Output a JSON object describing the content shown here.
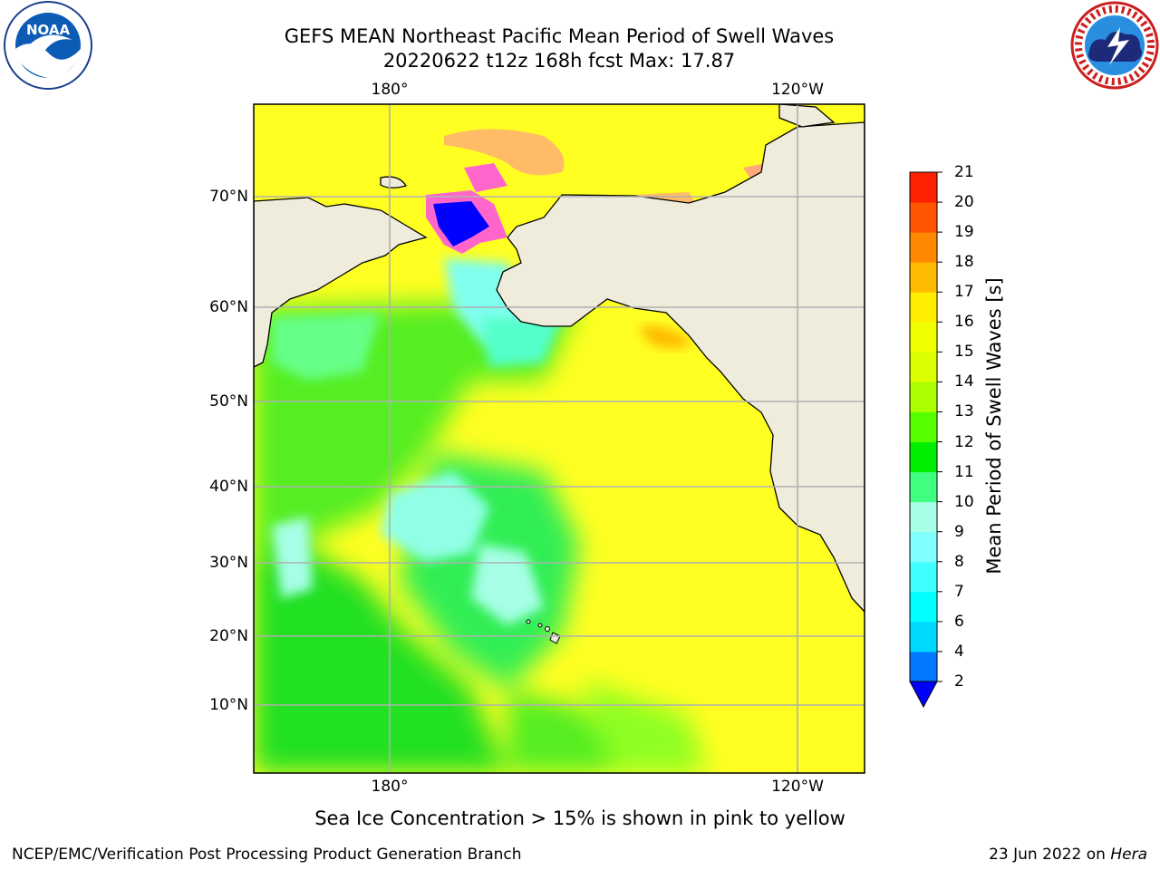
{
  "title": {
    "line1": "GEFS MEAN Northeast Pacific Mean Period of Swell Waves",
    "line2": "20220622 t12z 168h fcst   Max: 17.87"
  },
  "logos": {
    "left": {
      "name": "noaa-logo",
      "text": "NOAA",
      "ring_text": "NATIONAL OCEANIC AND ATMOSPHERIC ADMINISTRATION · U.S. DEPARTMENT OF COMMERCE"
    },
    "right": {
      "name": "nws-logo",
      "ring_text": "NATIONAL WEATHER SERVICE"
    }
  },
  "map": {
    "lon_ticks_top": [
      "180°",
      "120°W"
    ],
    "lon_ticks_bottom": [
      "180°",
      "120°W"
    ],
    "lat_ticks": [
      "70°N",
      "60°N",
      "50°N",
      "40°N",
      "30°N",
      "20°N",
      "10°N"
    ],
    "land_color": "#efecdc",
    "grid_color": "#b0b0b0"
  },
  "colorbar": {
    "label": "Mean Period of Swell Waves [s]",
    "ticks": [
      "21",
      "20",
      "19",
      "18",
      "17",
      "16",
      "15",
      "14",
      "13",
      "12",
      "11",
      "10",
      "9",
      "8",
      "7",
      "6",
      "4",
      "2"
    ],
    "levels": [
      2,
      4,
      6,
      7,
      8,
      9,
      10,
      11,
      12,
      13,
      14,
      15,
      16,
      17,
      18,
      19,
      20,
      21
    ],
    "colors": [
      "#0078ff",
      "#00d9ff",
      "#00ffff",
      "#40ffff",
      "#80ffff",
      "#a6ffe6",
      "#40ff80",
      "#00ee00",
      "#55ff00",
      "#aaff00",
      "#d9ff00",
      "#f0ff00",
      "#ffee00",
      "#ffbb00",
      "#ff8800",
      "#ff5500",
      "#ff2200"
    ],
    "under_color": "#0000ff"
  },
  "note": "Sea Ice Concentration > 15% is shown in pink to yellow",
  "footer": {
    "left": "NCEP/EMC/Verification Post Processing Product Generation Branch",
    "right_date": "23 Jun 2022 on ",
    "right_host": "Hera"
  }
}
